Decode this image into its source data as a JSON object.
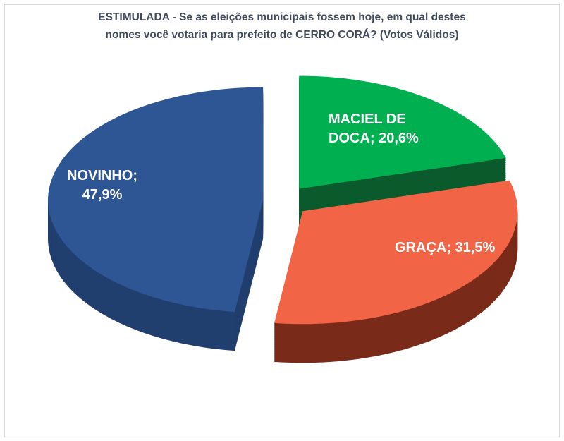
{
  "chart_data": {
    "type": "pie",
    "style": "3d-exploded",
    "title_line1": "ESTIMULADA - Se as eleições municipais fossem hoje, em qual destes",
    "title_line2": "nomes você votaria para prefeito de CERRO CORÁ? (Votos Válidos)",
    "slices": [
      {
        "name": "MACIEL DE DOCA",
        "value": 20.6,
        "label_line1": "MACIEL DE",
        "label_line2": "DOCA; 20,6%",
        "color": "#00b050",
        "side_color": "#0b5a2d"
      },
      {
        "name": "GRAÇA",
        "value": 31.5,
        "label_line1": "GRAÇA; 31,5%",
        "label_line2": "",
        "color": "#f26446",
        "side_color": "#7a2a18"
      },
      {
        "name": "NOVINHO",
        "value": 47.9,
        "label_line1": "NOVINHO;",
        "label_line2": "47,9%",
        "color": "#2e5594",
        "side_color": "#213f6e"
      }
    ]
  }
}
